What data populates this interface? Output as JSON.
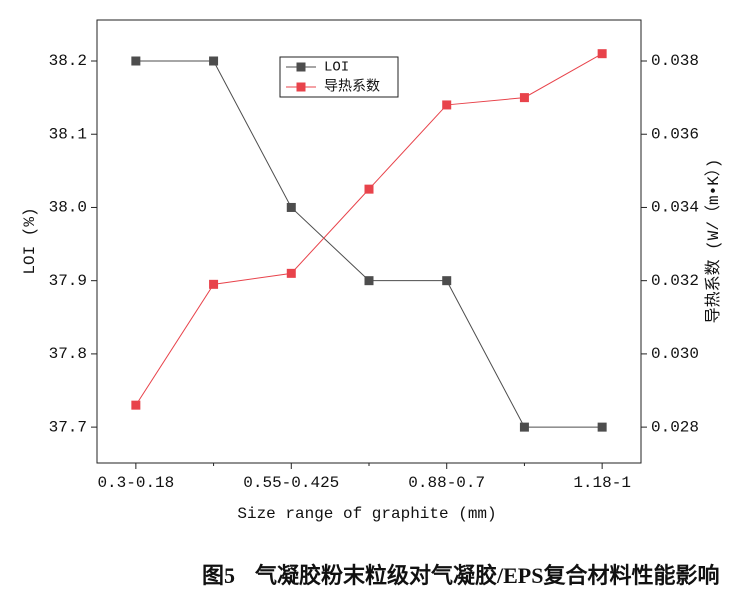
{
  "chart_data": {
    "type": "line",
    "categories": [
      "0.3-0.18",
      null,
      "0.55-0.425",
      null,
      "0.88-0.7",
      null,
      "1.18-1"
    ],
    "xlabel": "Size range of graphite (mm)",
    "ylabel": "LOI (%)",
    "y2label": "导热系数 (W/（m•K）)",
    "ylim": [
      37.651,
      38.256
    ],
    "yticks": [
      37.7,
      37.8,
      37.9,
      {
        "value": 38,
        "label": "38.0"
      },
      38.1,
      38.2
    ],
    "y2lim": [
      0.02702,
      0.03912
    ],
    "y2ticks": [
      0.028,
      {
        "value": 0.03,
        "label": "0.030"
      },
      0.032,
      0.034,
      0.036,
      0.038
    ],
    "legend": "upper center",
    "series": [
      {
        "name": "LOI",
        "color": "#4d4d4d",
        "values": [
          38.2,
          38.2,
          38.0,
          37.9,
          37.9,
          37.7,
          37.7
        ]
      },
      {
        "name": "导热系数",
        "color": "#e8434b",
        "axis": "y2",
        "values": [
          0.0286,
          0.0319,
          0.0322,
          0.0345,
          0.0368,
          0.037,
          0.0382
        ]
      }
    ]
  },
  "caption_label": "图5",
  "caption": "气凝胶粉末粒级对气凝胶/EPS复合材料性能影响"
}
